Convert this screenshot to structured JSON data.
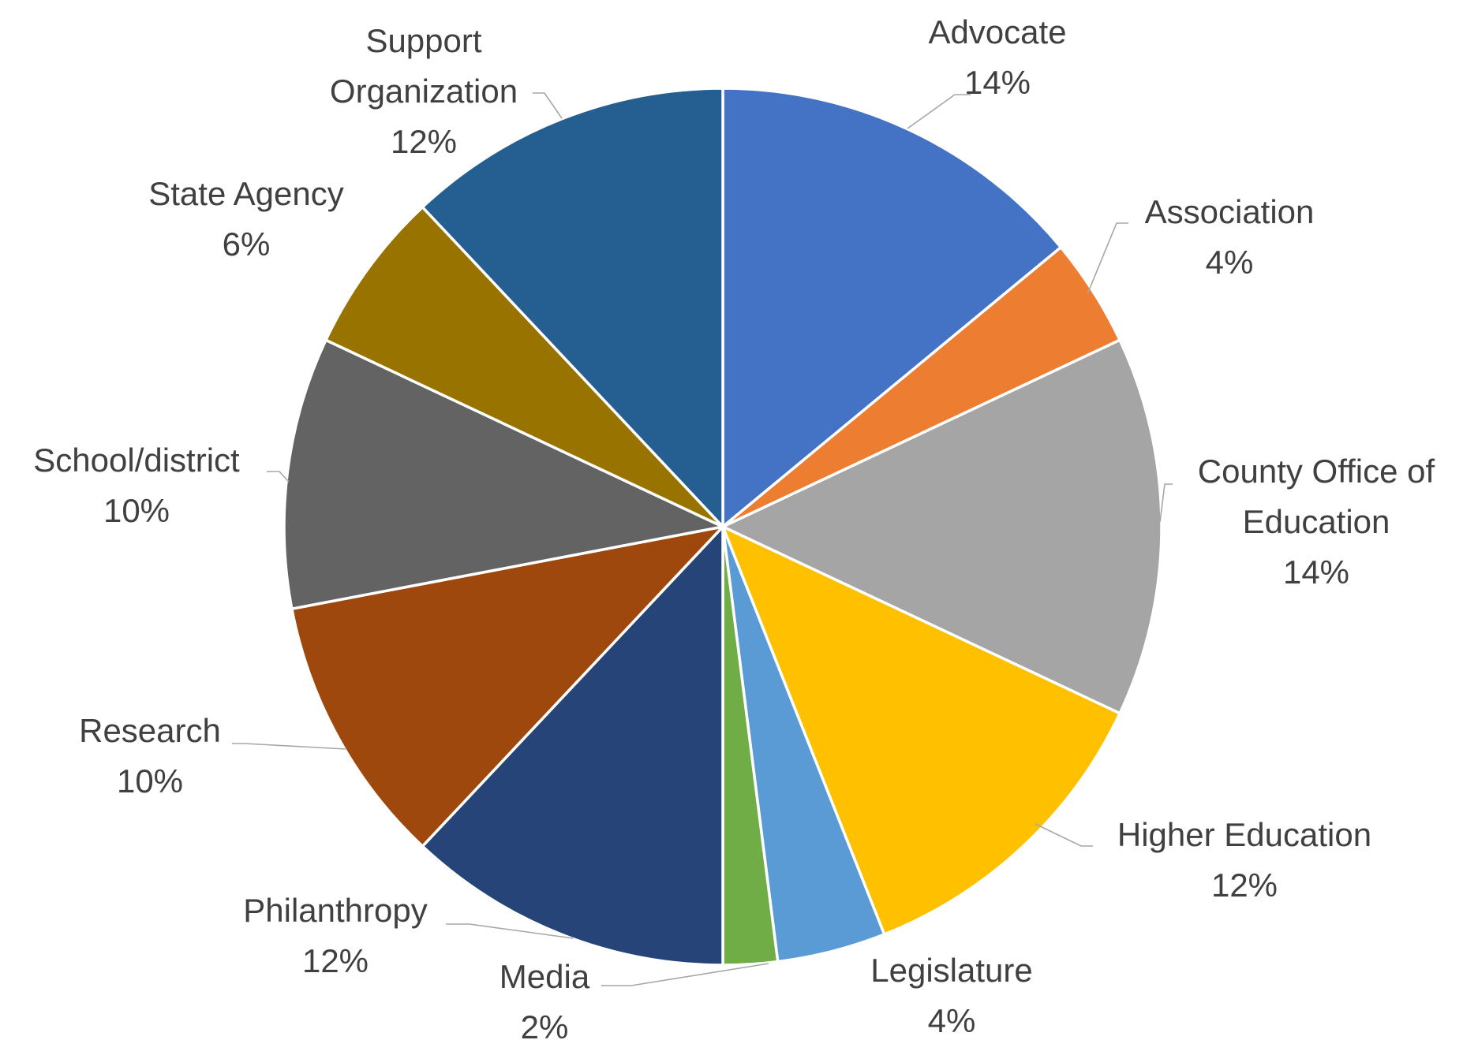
{
  "chart_data": {
    "type": "pie",
    "title": "",
    "legend": "none",
    "slices": [
      {
        "label": "Advocate",
        "value": 14,
        "value_label": "14%",
        "color": "#4472C4"
      },
      {
        "label": "Association",
        "value": 4,
        "value_label": "4%",
        "color": "#ED7D31"
      },
      {
        "label": "County Office of Education",
        "value": 14,
        "value_label": "14%",
        "color": "#A5A5A5"
      },
      {
        "label": "Higher Education",
        "value": 12,
        "value_label": "12%",
        "color": "#FFC000"
      },
      {
        "label": "Legislature",
        "value": 4,
        "value_label": "4%",
        "color": "#5B9BD5"
      },
      {
        "label": "Media",
        "value": 2,
        "value_label": "2%",
        "color": "#70AD47"
      },
      {
        "label": "Philanthropy",
        "value": 12,
        "value_label": "12%",
        "color": "#264478"
      },
      {
        "label": "Research",
        "value": 10,
        "value_label": "10%",
        "color": "#9E480E"
      },
      {
        "label": "School/district",
        "value": 10,
        "value_label": "10%",
        "color": "#636363"
      },
      {
        "label": "State Agency",
        "value": 6,
        "value_label": "6%",
        "color": "#997300"
      },
      {
        "label": "Support Organization",
        "value": 12,
        "value_label": "12%",
        "color": "#255E91"
      }
    ]
  }
}
